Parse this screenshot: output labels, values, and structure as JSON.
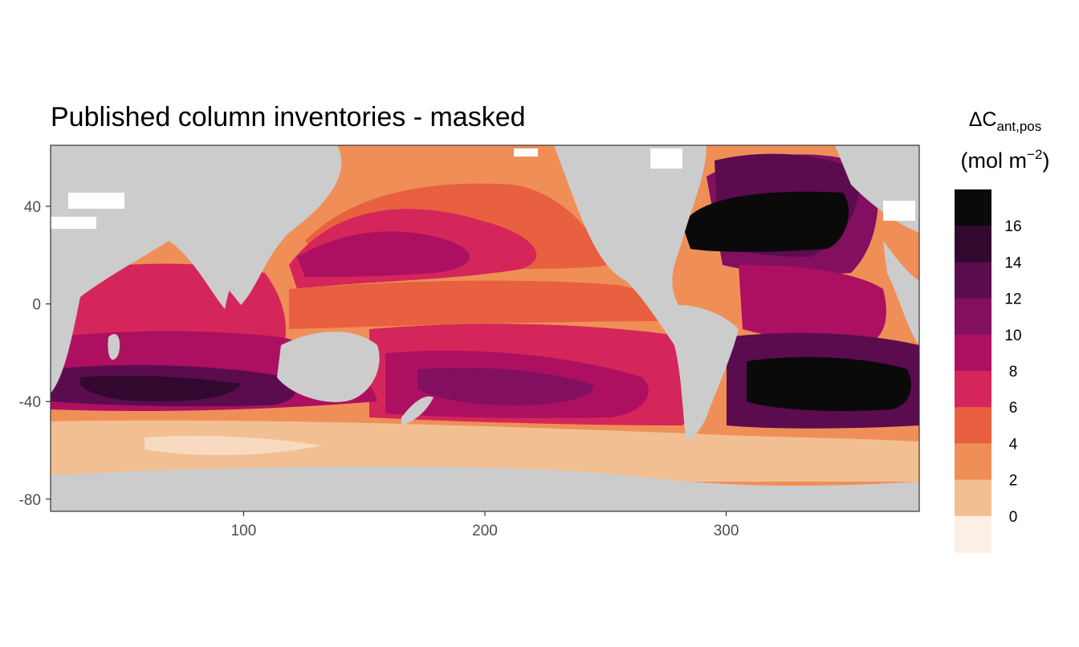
{
  "title": "Published column inventories - masked",
  "map": {
    "type": "map",
    "projection": "equirectangular longitude/latitude",
    "x_ticks": [
      100,
      200,
      300
    ],
    "x_tick_labels": [
      "100",
      "200",
      "300"
    ],
    "y_ticks": [
      40,
      0,
      -40,
      -80
    ],
    "y_tick_labels": [
      "40",
      "0",
      "-40",
      "-80"
    ],
    "xlim": [
      20,
      380
    ],
    "ylim": [
      -85,
      65
    ],
    "land_color": "#cccccc",
    "masked_color": "#ffffff",
    "field": "Anthropogenic carbon column inventory; highest in the North Atlantic subpolar gyre and South Atlantic subtropics, elevated across the southern Indian Ocean and subtropical gyres, lowest in the Southern Ocean and high-latitude North Pacific"
  },
  "legend": {
    "title_main": "ΔC",
    "title_sub": "ant,pos",
    "unit_open": "(mol m",
    "unit_sup": "−2",
    "unit_close": ")",
    "labels": [
      "16",
      "14",
      "12",
      "10",
      "8",
      "6",
      "4",
      "2",
      "0"
    ],
    "colors": [
      "#0a0a0a",
      "#32082f",
      "#5a0c4f",
      "#830f61",
      "#ad1061",
      "#d4265a",
      "#e8603f",
      "#ef8f57",
      "#f2bf92",
      "#fcf0e6"
    ]
  }
}
